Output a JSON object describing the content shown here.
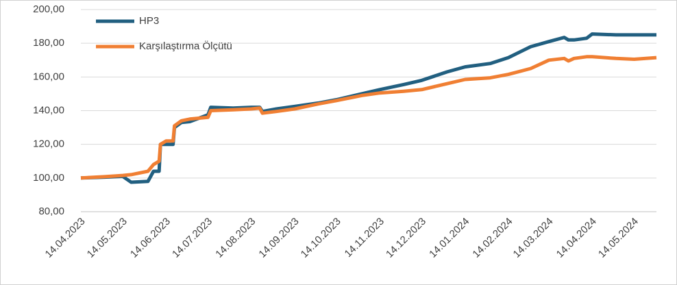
{
  "chart_data": {
    "type": "line",
    "x": [
      "14.04.2023",
      "01.05.2023",
      "14.05.2023",
      "20.05.2023",
      "01.06.2023",
      "05.06.2023",
      "09.06.2023",
      "10.06.2023",
      "14.06.2023",
      "19.06.2023",
      "20.06.2023",
      "25.06.2023",
      "01.07.2023",
      "14.07.2023",
      "16.07.2023",
      "01.08.2023",
      "14.08.2023",
      "20.08.2023",
      "22.08.2023",
      "01.09.2023",
      "14.09.2023",
      "01.10.2023",
      "14.10.2023",
      "01.11.2023",
      "14.11.2023",
      "01.12.2023",
      "14.12.2023",
      "01.01.2024",
      "14.01.2024",
      "01.02.2024",
      "14.02.2024",
      "01.03.2024",
      "14.03.2024",
      "25.03.2024",
      "28.03.2024",
      "01.04.2024",
      "10.04.2024",
      "14.04.2024",
      "01.05.2024",
      "14.05.2024",
      "30.05.2024"
    ],
    "series": [
      {
        "name": "HP3",
        "color": "#215f80",
        "values": [
          100,
          100.5,
          101,
          97.5,
          98,
          104,
          104,
          120,
          120,
          120,
          130,
          133,
          133.5,
          137.5,
          142,
          141.5,
          142,
          142,
          139.5,
          141,
          142.5,
          144.5,
          146.5,
          150,
          152.5,
          155.5,
          158,
          163,
          166,
          168,
          171.5,
          178,
          181,
          183.5,
          182,
          182,
          183,
          185.5,
          185,
          185,
          185
        ]
      },
      {
        "name": "Karşılaştırma Ölçütü",
        "color": "#f07f33",
        "values": [
          100,
          100.8,
          101.5,
          102,
          104,
          108,
          110,
          120,
          122,
          122,
          131,
          134,
          135,
          136,
          140,
          140.5,
          141,
          141.5,
          138.5,
          139.5,
          141,
          144,
          146,
          149,
          150.5,
          151.5,
          152.5,
          156,
          158.5,
          159.5,
          161.5,
          165,
          170,
          171,
          169.5,
          171,
          172,
          172,
          171,
          170.5,
          171.5
        ]
      }
    ],
    "xlim": [
      "14.04.2023",
      "30.05.2024"
    ],
    "xticks": [
      "14.04.2023",
      "14.05.2023",
      "14.06.2023",
      "14.07.2023",
      "14.08.2023",
      "14.09.2023",
      "14.10.2023",
      "14.11.2023",
      "14.12.2023",
      "14.01.2024",
      "14.02.2024",
      "14.03.2024",
      "14.04.2024",
      "14.05.2024"
    ],
    "ylim": [
      80,
      200
    ],
    "yticks": [
      {
        "value": 80,
        "label": "80,00"
      },
      {
        "value": 100,
        "label": "100,00"
      },
      {
        "value": 120,
        "label": "120,00"
      },
      {
        "value": 140,
        "label": "140,00"
      },
      {
        "value": 160,
        "label": "160,00"
      },
      {
        "value": 180,
        "label": "180,00"
      },
      {
        "value": 200,
        "label": "200,00"
      }
    ],
    "grid": true,
    "legend": "top-left"
  }
}
